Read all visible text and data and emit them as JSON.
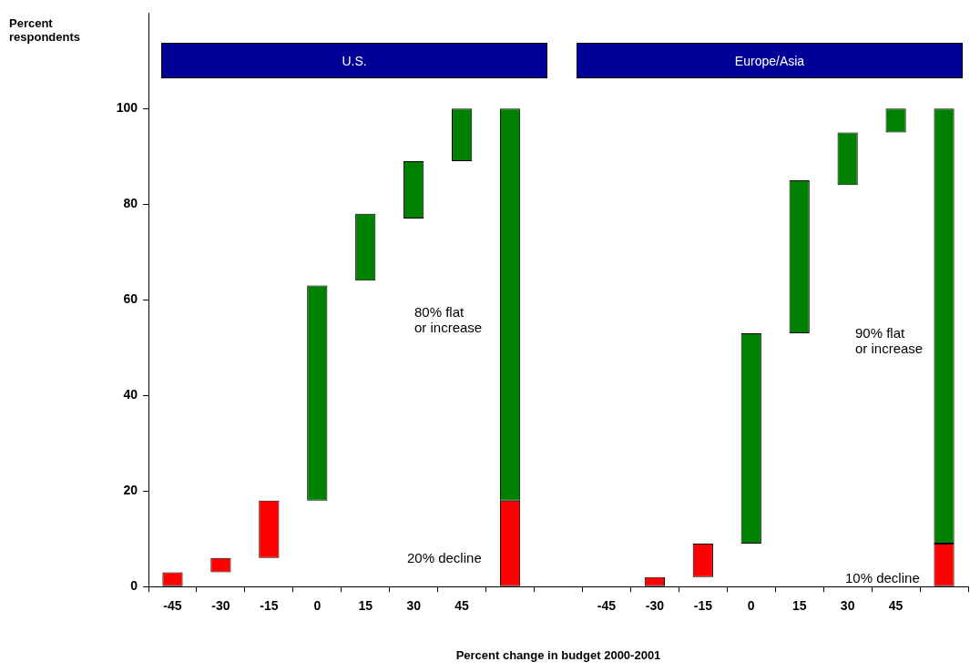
{
  "chart_data": {
    "type": "bar",
    "xlabel": "Percent change in budget 2000-2001",
    "ylabel": "Percent respondents",
    "categories": [
      "-45",
      "-30",
      "-15",
      "0",
      "15",
      "30",
      "45",
      null,
      null,
      "-45",
      "-30",
      "-15",
      "0",
      "15",
      "30",
      "45",
      null
    ],
    "series": [
      {
        "color": "#ff0000",
        "base": [
          0,
          3,
          6,
          null,
          null,
          null,
          null,
          0,
          null,
          null,
          0,
          2,
          null,
          null,
          null,
          null,
          0
        ],
        "values": [
          3,
          3,
          12,
          null,
          null,
          null,
          null,
          18,
          null,
          null,
          2,
          7,
          null,
          null,
          null,
          null,
          9
        ]
      },
      {
        "color": "#008000",
        "base": [
          null,
          null,
          null,
          18,
          64,
          77,
          89,
          18,
          null,
          null,
          null,
          null,
          9,
          53,
          84,
          95,
          9
        ],
        "values": [
          null,
          null,
          null,
          45,
          14,
          12,
          11,
          82,
          null,
          null,
          null,
          null,
          44,
          32,
          11,
          5,
          91
        ]
      }
    ],
    "ylim": [
      0,
      120
    ],
    "yticks": [
      0,
      20,
      40,
      60,
      80,
      100
    ],
    "grid": false,
    "legend": false,
    "annotations": [
      "U.S.",
      "Europe/Asia",
      "80% flat\nor increase",
      "20% decline",
      "90% flat\nor increase",
      "10% decline"
    ]
  }
}
